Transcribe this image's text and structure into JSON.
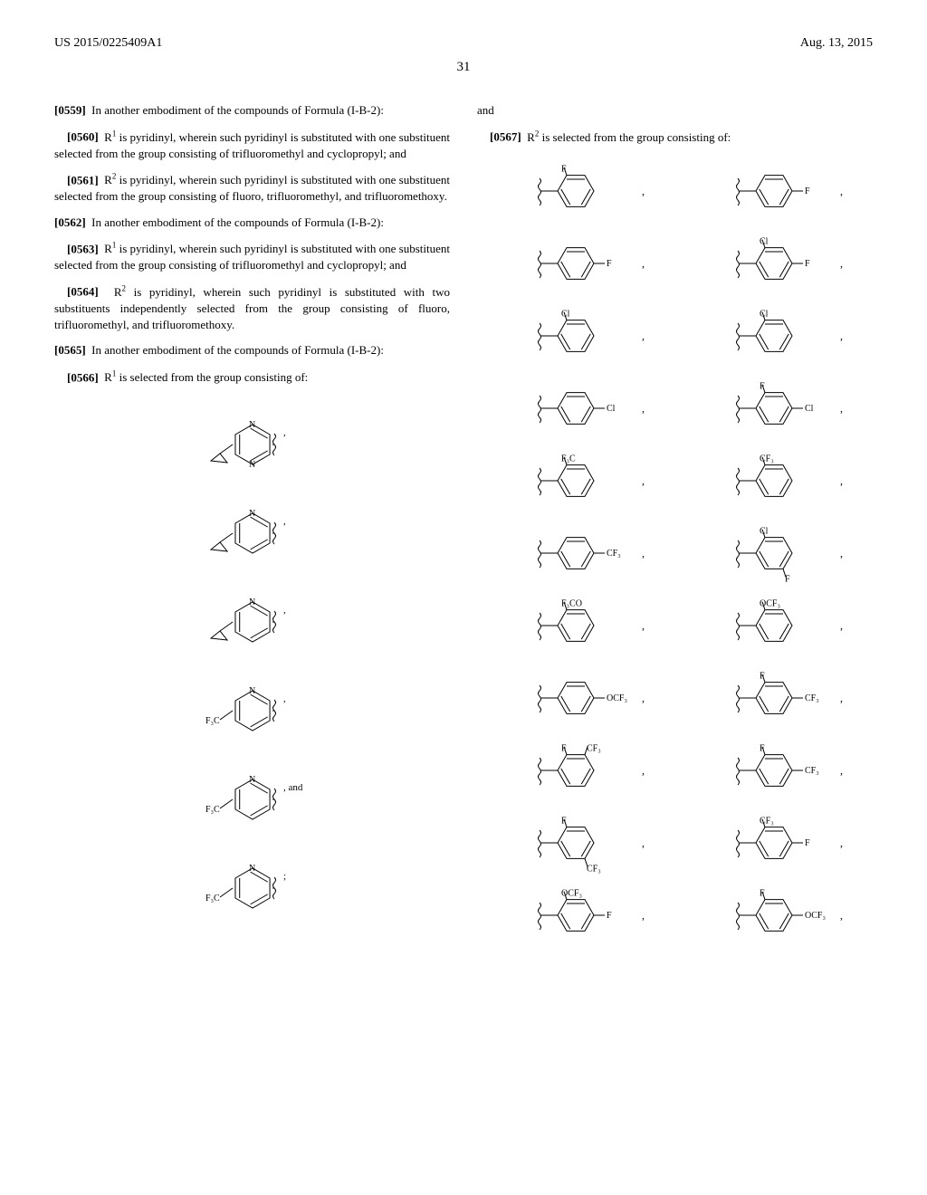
{
  "header": {
    "pub_number": "US 2015/0225409A1",
    "pub_date": "Aug. 13, 2015"
  },
  "page_number": "31",
  "left_column": {
    "para_0559": {
      "num": "[0559]",
      "text": "In another embodiment of the compounds of Formula (I-B-2):"
    },
    "para_0560": {
      "num": "[0560]",
      "text_before": "R",
      "sup": "1",
      "text_after": " is pyridinyl, wherein such pyridinyl is substituted with one substituent selected from the group consisting of trifluoromethyl and cyclopropyl; and"
    },
    "para_0561": {
      "num": "[0561]",
      "text_before": "R",
      "sup": "2",
      "text_after": " is pyridinyl, wherein such pyridinyl is substituted with one substituent selected from the group consisting of fluoro, trifluoromethyl, and trifluoromethoxy."
    },
    "para_0562": {
      "num": "[0562]",
      "text": "In another embodiment of the compounds of Formula (I-B-2):"
    },
    "para_0563": {
      "num": "[0563]",
      "text_before": "R",
      "sup": "1",
      "text_after": " is pyridinyl, wherein such pyridinyl is substituted with one substituent selected from the group consisting of trifluoromethyl and cyclopropyl; and"
    },
    "para_0564": {
      "num": "[0564]",
      "text_before": "R",
      "sup": "2",
      "text_after": " is pyridinyl, wherein such pyridinyl is substituted with two substituents independently selected from the group consisting of fluoro, trifluoromethyl, and trifluoromethoxy."
    },
    "para_0565": {
      "num": "[0565]",
      "text": "In another embodiment of the compounds of Formula (I-B-2):"
    },
    "para_0566": {
      "num": "[0566]",
      "text_before": "R",
      "sup": "1",
      "text_after": " is selected from the group consisting of:"
    },
    "structures": [
      {
        "left_sub": "",
        "ring_n": [
          "N",
          "N"
        ],
        "trail": ","
      },
      {
        "left_sub": "",
        "ring_n": [
          "N"
        ],
        "trail": ","
      },
      {
        "left_sub": "",
        "ring_n": [
          "N"
        ],
        "trail": ","
      },
      {
        "left_sub": "F₃C",
        "ring_n": [
          "N"
        ],
        "trail": ","
      },
      {
        "left_sub": "F₃C",
        "ring_n": [
          "N"
        ],
        "trail": ", and"
      },
      {
        "left_sub": "F₃C",
        "ring_n": [
          "N"
        ],
        "trail": ";"
      }
    ]
  },
  "right_column": {
    "and_label": "and",
    "para_0567": {
      "num": "[0567]",
      "text_before": "R",
      "sup": "2",
      "text_after": " is selected from the group consisting of:"
    },
    "structures": [
      [
        {
          "top": "F",
          "right": "",
          "trail": ","
        },
        {
          "top": "",
          "right": "F",
          "trail": ","
        }
      ],
      [
        {
          "top": "",
          "right": "F",
          "trail": ","
        },
        {
          "top": "Cl",
          "right": "F",
          "trail": ","
        }
      ],
      [
        {
          "top": "Cl",
          "right": "",
          "trail": ","
        },
        {
          "top": "Cl",
          "right": "",
          "trail": ","
        }
      ],
      [
        {
          "top": "",
          "right": "Cl",
          "trail": ","
        },
        {
          "top": "F",
          "right": "Cl",
          "trail": ","
        }
      ],
      [
        {
          "top": "F₃C",
          "right": "",
          "trail": ","
        },
        {
          "top": "CF₃",
          "right": "",
          "trail": ","
        }
      ],
      [
        {
          "top": "",
          "right": "CF₃",
          "trail": ","
        },
        {
          "top": "Cl",
          "right": "",
          "bottom": "F",
          "trail": ","
        }
      ],
      [
        {
          "top": "F₃CO",
          "right": "",
          "trail": ","
        },
        {
          "top": "OCF₃",
          "right": "",
          "trail": ","
        }
      ],
      [
        {
          "top": "",
          "right": "OCF₃",
          "trail": ","
        },
        {
          "top": "F",
          "right": "CF₃",
          "trail": ","
        }
      ],
      [
        {
          "top": "F",
          "topR": "CF₃",
          "right": "",
          "trail": ","
        },
        {
          "top": "F",
          "right": "CF₃",
          "trail": ","
        }
      ],
      [
        {
          "top": "F",
          "right": "",
          "bottom": "CF₃",
          "trail": ","
        },
        {
          "top": "CF₃",
          "right": "F",
          "trail": ","
        }
      ],
      [
        {
          "top": "OCF₃",
          "right": "F",
          "trail": ","
        },
        {
          "top": "F",
          "right": "OCF₃",
          "trail": ","
        }
      ]
    ]
  },
  "style": {
    "colors": {
      "text": "#000000",
      "background": "#ffffff",
      "line": "#000000"
    },
    "fonts": {
      "body_family": "Times New Roman",
      "body_size_pt": 10,
      "header_size_pt": 11,
      "label_size_pt": 8
    },
    "hex": {
      "width": 48,
      "height": 40,
      "stroke_width": 1
    }
  }
}
